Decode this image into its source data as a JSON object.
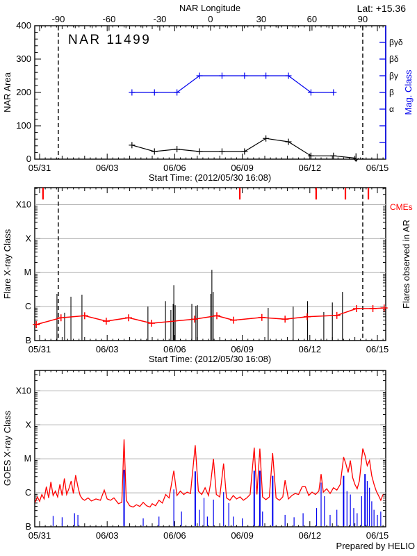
{
  "header": {
    "lat_label": "Lat: +15.36",
    "credit": "Prepared by HELIO"
  },
  "colors": {
    "black": "#000000",
    "blue": "#0000ee",
    "red": "#ff0000",
    "grid": "#b0b0b0"
  },
  "chart_data": {
    "type": "line",
    "x_axis": {
      "label": "Start Time: (2012/05/30 16:08)",
      "tick_labels": [
        "05/31",
        "06/03",
        "06/06",
        "06/09",
        "06/12",
        "06/15"
      ],
      "tick_days": [
        0,
        3,
        6,
        9,
        12,
        15
      ],
      "range_days": [
        -0.216,
        15.37
      ],
      "minor_step_days": 0.25
    },
    "longitude_axis": {
      "label": "NAR Longitude",
      "deg_ticks": [
        -90,
        -60,
        -30,
        0,
        30,
        60,
        90
      ],
      "day_at_deg0": 7.59,
      "day_per_deg": 0.0751,
      "minor_deg_step": 10,
      "deg_range": [
        -104,
        103
      ]
    },
    "limb_crossing_days": [
      0.83,
      14.35
    ],
    "panels": [
      {
        "title": "NAR 11499",
        "ylabel": "NAR Area",
        "ylim": [
          0,
          400
        ],
        "yticks": [
          0,
          100,
          200,
          300,
          400
        ],
        "y_minor_step": 20,
        "right_axis": {
          "label": "Mag. Class",
          "tick_step": 50,
          "labeled_ticks": [
            {
              "label": "α",
              "value": 150
            },
            {
              "label": "β",
              "value": 200
            },
            {
              "label": "βγ",
              "value": 250
            },
            {
              "label": "βδ",
              "value": 300
            },
            {
              "label": "βγδ",
              "value": 350
            }
          ]
        },
        "series": [
          {
            "name": "NAR area",
            "color_key": "black",
            "marker": "plus",
            "end_marker": "down-arrow",
            "points": [
              [
                4.1,
                42
              ],
              [
                5.1,
                23
              ],
              [
                6.1,
                30
              ],
              [
                7.1,
                23
              ],
              [
                8.1,
                23
              ],
              [
                9.1,
                23
              ],
              [
                10.05,
                62
              ],
              [
                11.05,
                52
              ],
              [
                12.05,
                10
              ],
              [
                13.05,
                10
              ],
              [
                14.05,
                3
              ]
            ]
          },
          {
            "name": "Magnetic class",
            "color_key": "blue",
            "marker": "plus",
            "class_values": {
              "α": 150,
              "β": 200,
              "βγ": 250,
              "βδ": 300,
              "βγδ": 350
            },
            "class_points": [
              [
                4.1,
                "β"
              ],
              [
                5.1,
                "β"
              ],
              [
                6.1,
                "β"
              ],
              [
                7.1,
                "βγ"
              ],
              [
                8.1,
                "βγ"
              ],
              [
                9.1,
                "βγ"
              ],
              [
                10.05,
                "βγ"
              ],
              [
                11.05,
                "βγ"
              ],
              [
                12.05,
                "β"
              ],
              [
                13.05,
                "β"
              ]
            ]
          }
        ]
      },
      {
        "ylabel": "Flare X-ray Class",
        "right_label": "Flares observed in AR",
        "cme_label": "CMEs",
        "class_ticks": [
          "B",
          "C",
          "M",
          "X",
          "X10"
        ],
        "ylim_decades": [
          0,
          4.5
        ],
        "cme_days": [
          0.15,
          8.89,
          12.28,
          13.58,
          14.6
        ],
        "flare_events": [
          [
            0.77,
            1.37
          ],
          [
            1.11,
            0.82
          ],
          [
            1.39,
            1.29
          ],
          [
            1.88,
            1.35
          ],
          [
            4.81,
            1.0
          ],
          [
            5.59,
            1.16
          ],
          [
            5.83,
            0.9
          ],
          [
            5.93,
            1.08
          ],
          [
            5.96,
            1.63
          ],
          [
            6.02,
            1.04
          ],
          [
            6.76,
            1.08
          ],
          [
            6.94,
            1.02
          ],
          [
            7.01,
            1.04
          ],
          [
            7.6,
            1.37
          ],
          [
            7.65,
            2.08
          ],
          [
            7.71,
            1.43
          ],
          [
            10.15,
            0.96
          ],
          [
            11.26,
            1.0
          ],
          [
            11.9,
            1.16
          ],
          [
            12.62,
            0.84
          ],
          [
            13.0,
            1.12
          ],
          [
            13.45,
            1.43
          ]
        ],
        "mean_flux_series": [
          [
            -0.15,
            0.47
          ],
          [
            0.95,
            0.67
          ],
          [
            2.0,
            0.73
          ],
          [
            2.96,
            0.57
          ],
          [
            3.95,
            0.67
          ],
          [
            4.97,
            0.51
          ],
          [
            6.88,
            0.63
          ],
          [
            7.87,
            0.73
          ],
          [
            8.61,
            0.6
          ],
          [
            9.87,
            0.68
          ],
          [
            10.9,
            0.63
          ],
          [
            11.88,
            0.7
          ],
          [
            13.2,
            0.74
          ],
          [
            14.07,
            0.94
          ],
          [
            14.8,
            0.94
          ],
          [
            15.3,
            0.96
          ]
        ]
      },
      {
        "ylabel": "GOES X-ray Class",
        "class_ticks": [
          "B",
          "C",
          "M",
          "X",
          "X10"
        ],
        "ylim_decades": [
          0,
          4.6
        ],
        "xray_flux_series": [
          [
            -0.2,
            0.72
          ],
          [
            -0.1,
            0.88
          ],
          [
            0.0,
            0.75
          ],
          [
            0.1,
            0.95
          ],
          [
            0.2,
            0.82
          ],
          [
            0.3,
            1.18
          ],
          [
            0.4,
            0.85
          ],
          [
            0.5,
            1.32
          ],
          [
            0.6,
            0.92
          ],
          [
            0.7,
            1.05
          ],
          [
            0.8,
            0.88
          ],
          [
            0.9,
            1.25
          ],
          [
            1.0,
            0.92
          ],
          [
            1.1,
            1.42
          ],
          [
            1.2,
            0.95
          ],
          [
            1.3,
            1.12
          ],
          [
            1.4,
            1.35
          ],
          [
            1.5,
            0.98
          ],
          [
            1.6,
            1.52
          ],
          [
            1.7,
            1.18
          ],
          [
            1.8,
            0.92
          ],
          [
            1.9,
            0.82
          ],
          [
            2.0,
            0.78
          ],
          [
            2.15,
            0.85
          ],
          [
            2.3,
            0.76
          ],
          [
            2.5,
            0.82
          ],
          [
            2.7,
            0.78
          ],
          [
            2.87,
            1.08
          ],
          [
            3.0,
            0.82
          ],
          [
            3.15,
            0.78
          ],
          [
            3.3,
            0.85
          ],
          [
            3.5,
            0.68
          ],
          [
            3.65,
            0.72
          ],
          [
            3.75,
            2.57
          ],
          [
            3.85,
            0.78
          ],
          [
            4.0,
            0.62
          ],
          [
            4.15,
            0.58
          ],
          [
            4.3,
            0.65
          ],
          [
            4.45,
            0.6
          ],
          [
            4.6,
            0.72
          ],
          [
            4.75,
            0.62
          ],
          [
            4.9,
            0.58
          ],
          [
            5.0,
            0.68
          ],
          [
            5.15,
            0.62
          ],
          [
            5.3,
            0.78
          ],
          [
            5.45,
            0.7
          ],
          [
            5.6,
            0.95
          ],
          [
            5.75,
            0.85
          ],
          [
            5.96,
            1.65
          ],
          [
            6.1,
            0.92
          ],
          [
            6.25,
            1.05
          ],
          [
            6.4,
            0.95
          ],
          [
            6.55,
            1.02
          ],
          [
            6.7,
            0.98
          ],
          [
            6.91,
            2.4
          ],
          [
            7.05,
            1.05
          ],
          [
            7.2,
            0.95
          ],
          [
            7.35,
            1.15
          ],
          [
            7.5,
            0.92
          ],
          [
            7.6,
            1.3
          ],
          [
            7.72,
            2.0
          ],
          [
            7.85,
            0.95
          ],
          [
            8.0,
            0.88
          ],
          [
            8.17,
            1.86
          ],
          [
            8.3,
            0.85
          ],
          [
            8.45,
            0.78
          ],
          [
            8.6,
            0.92
          ],
          [
            8.75,
            0.82
          ],
          [
            8.9,
            0.88
          ],
          [
            9.05,
            0.78
          ],
          [
            9.2,
            0.85
          ],
          [
            9.35,
            0.95
          ],
          [
            9.53,
            2.33
          ],
          [
            9.65,
            0.95
          ],
          [
            9.78,
            2.3
          ],
          [
            9.9,
            0.88
          ],
          [
            10.05,
            0.8
          ],
          [
            10.2,
            0.88
          ],
          [
            10.35,
            2.17
          ],
          [
            10.5,
            0.85
          ],
          [
            10.65,
            0.78
          ],
          [
            10.8,
            0.88
          ],
          [
            10.9,
            1.37
          ],
          [
            11.05,
            0.82
          ],
          [
            11.2,
            0.92
          ],
          [
            11.35,
            0.98
          ],
          [
            11.5,
            0.95
          ],
          [
            11.66,
            1.18
          ],
          [
            11.8,
            1.18
          ],
          [
            11.95,
            0.92
          ],
          [
            12.1,
            1.02
          ],
          [
            12.25,
            0.95
          ],
          [
            12.4,
            1.05
          ],
          [
            12.5,
            1.55
          ],
          [
            12.6,
            1.02
          ],
          [
            12.75,
            1.12
          ],
          [
            12.9,
            0.98
          ],
          [
            13.05,
            1.15
          ],
          [
            13.2,
            1.08
          ],
          [
            13.35,
            1.25
          ],
          [
            13.5,
            2.05
          ],
          [
            13.6,
            1.85
          ],
          [
            13.7,
            1.6
          ],
          [
            13.8,
            1.95
          ],
          [
            13.9,
            1.45
          ],
          [
            14.0,
            1.25
          ],
          [
            14.1,
            1.12
          ],
          [
            14.2,
            1.35
          ],
          [
            14.35,
            2.3
          ],
          [
            14.45,
            2.1
          ],
          [
            14.55,
            1.8
          ],
          [
            14.65,
            1.95
          ],
          [
            14.75,
            1.5
          ],
          [
            14.85,
            1.25
          ],
          [
            14.95,
            1.05
          ],
          [
            15.05,
            0.92
          ],
          [
            15.15,
            0.78
          ],
          [
            15.25,
            0.95
          ]
        ],
        "low_channel_spikes": [
          [
            0.6,
            0.32
          ],
          [
            1.0,
            0.28
          ],
          [
            1.55,
            0.4
          ],
          [
            1.7,
            0.35
          ],
          [
            3.75,
            1.68
          ],
          [
            4.6,
            0.25
          ],
          [
            5.3,
            0.3
          ],
          [
            5.96,
            1.1
          ],
          [
            6.3,
            0.45
          ],
          [
            6.91,
            1.63
          ],
          [
            7.1,
            0.5
          ],
          [
            7.3,
            0.85
          ],
          [
            7.45,
            0.3
          ],
          [
            7.72,
            0.8
          ],
          [
            8.17,
            1.02
          ],
          [
            8.4,
            0.7
          ],
          [
            8.6,
            0.3
          ],
          [
            9.0,
            0.25
          ],
          [
            9.53,
            1.65
          ],
          [
            9.78,
            1.65
          ],
          [
            9.9,
            0.45
          ],
          [
            10.35,
            1.5
          ],
          [
            10.9,
            0.35
          ],
          [
            11.3,
            0.28
          ],
          [
            11.7,
            0.4
          ],
          [
            12.3,
            0.55
          ],
          [
            12.5,
            1.3
          ],
          [
            12.65,
            0.9
          ],
          [
            12.9,
            0.35
          ],
          [
            13.2,
            0.5
          ],
          [
            13.5,
            1.5
          ],
          [
            13.65,
            1.05
          ],
          [
            13.8,
            0.95
          ],
          [
            13.95,
            0.55
          ],
          [
            14.1,
            0.4
          ],
          [
            14.3,
            0.9
          ],
          [
            14.45,
            1.55
          ],
          [
            14.55,
            1.35
          ],
          [
            14.65,
            1.15
          ],
          [
            14.75,
            0.75
          ],
          [
            14.85,
            0.5
          ],
          [
            15.0,
            0.35
          ],
          [
            15.15,
            0.45
          ]
        ]
      }
    ]
  }
}
